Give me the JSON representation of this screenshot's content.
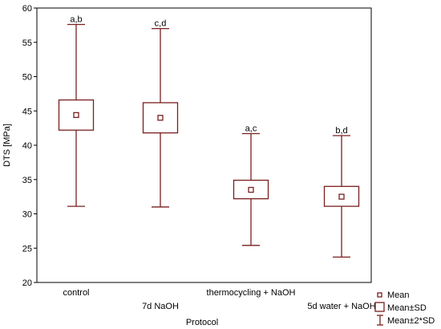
{
  "chart_data": {
    "type": "box",
    "xlabel": "Protocol",
    "ylabel": "DTS [MPa]",
    "ylim": [
      20,
      60
    ],
    "yticks": [
      20,
      25,
      30,
      35,
      40,
      45,
      50,
      55,
      60
    ],
    "grid": false,
    "legend_position": "bottom-right",
    "series_color": "#7a1f1f",
    "legend": {
      "mean": "Mean",
      "sd": "Mean±SD",
      "sd2": "Mean±2*SD"
    },
    "groups": [
      {
        "label": "control",
        "mean": 44.4,
        "sd_low": 42.2,
        "sd_high": 46.6,
        "sd2_low": 31.1,
        "sd2_high": 57.6,
        "annotation": "a,b"
      },
      {
        "label": "7d NaOH",
        "mean": 44.0,
        "sd_low": 41.8,
        "sd_high": 46.2,
        "sd2_low": 31.0,
        "sd2_high": 57.0,
        "annotation": "c,d"
      },
      {
        "label": "thermocycling + NaOH",
        "mean": 33.5,
        "sd_low": 32.2,
        "sd_high": 34.9,
        "sd2_low": 25.4,
        "sd2_high": 41.7,
        "annotation": "a,c"
      },
      {
        "label": "5d water + NaOH",
        "mean": 32.5,
        "sd_low": 31.1,
        "sd_high": 34.0,
        "sd2_low": 23.7,
        "sd2_high": 41.4,
        "annotation": "b,d"
      }
    ]
  }
}
